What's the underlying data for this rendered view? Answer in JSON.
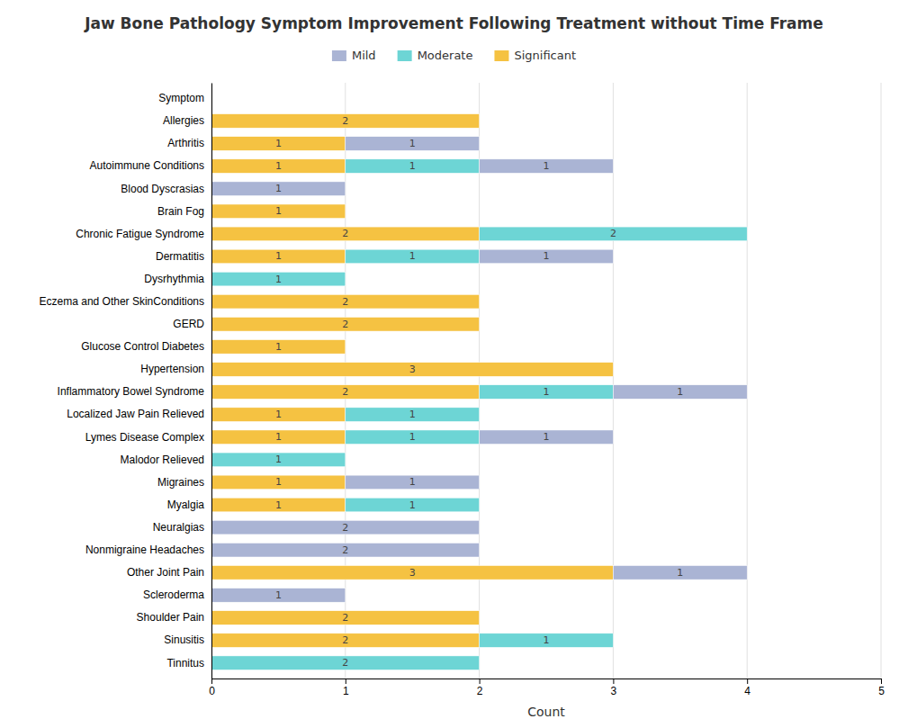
{
  "chart_data": {
    "type": "bar",
    "orientation": "horizontal",
    "stacked": true,
    "data_labels": true,
    "grid": true,
    "title": "Jaw Bone Pathology Symptom Improvement Following Treatment without Time Frame",
    "x_label": "Count",
    "xlim": [
      0,
      5
    ],
    "xticks": [
      0,
      1,
      2,
      3,
      4,
      5
    ],
    "categories": [
      "Symptom",
      "Allergies",
      "Arthritis",
      "Autoimmune Conditions",
      "Blood Dyscrasias",
      "Brain Fog",
      "Chronic Fatigue Syndrome",
      "Dermatitis",
      "Dysrhythmia",
      "Eczema and Other SkinConditions",
      "GERD",
      "Glucose Control Diabetes",
      "Hypertension",
      "Inflammatory Bowel Syndrome",
      "Localized Jaw Pain Relieved",
      "Lymes Disease Complex",
      "Malodor Relieved",
      "Migraines",
      "Myalgia",
      "Neuralgias",
      "Nonmigraine Headaches",
      "Other Joint Pain",
      "Scleroderma",
      "Shoulder Pain",
      "Sinusitis",
      "Tinnitus"
    ],
    "series": [
      {
        "name": "Significant",
        "color": "#f5c242",
        "values": [
          0,
          2,
          1,
          1,
          0,
          1,
          2,
          1,
          0,
          2,
          2,
          1,
          3,
          2,
          1,
          1,
          0,
          1,
          1,
          0,
          0,
          3,
          0,
          2,
          2,
          0
        ]
      },
      {
        "name": "Moderate",
        "color": "#6dd5d5",
        "values": [
          0,
          0,
          0,
          1,
          0,
          0,
          2,
          1,
          1,
          0,
          0,
          0,
          0,
          1,
          1,
          1,
          1,
          0,
          1,
          0,
          0,
          0,
          0,
          0,
          1,
          2
        ]
      },
      {
        "name": "Mild",
        "color": "#aab4d4",
        "values": [
          0,
          0,
          1,
          1,
          1,
          0,
          0,
          1,
          0,
          0,
          0,
          0,
          0,
          1,
          0,
          1,
          0,
          1,
          0,
          2,
          2,
          1,
          1,
          0,
          0,
          0
        ]
      }
    ]
  }
}
